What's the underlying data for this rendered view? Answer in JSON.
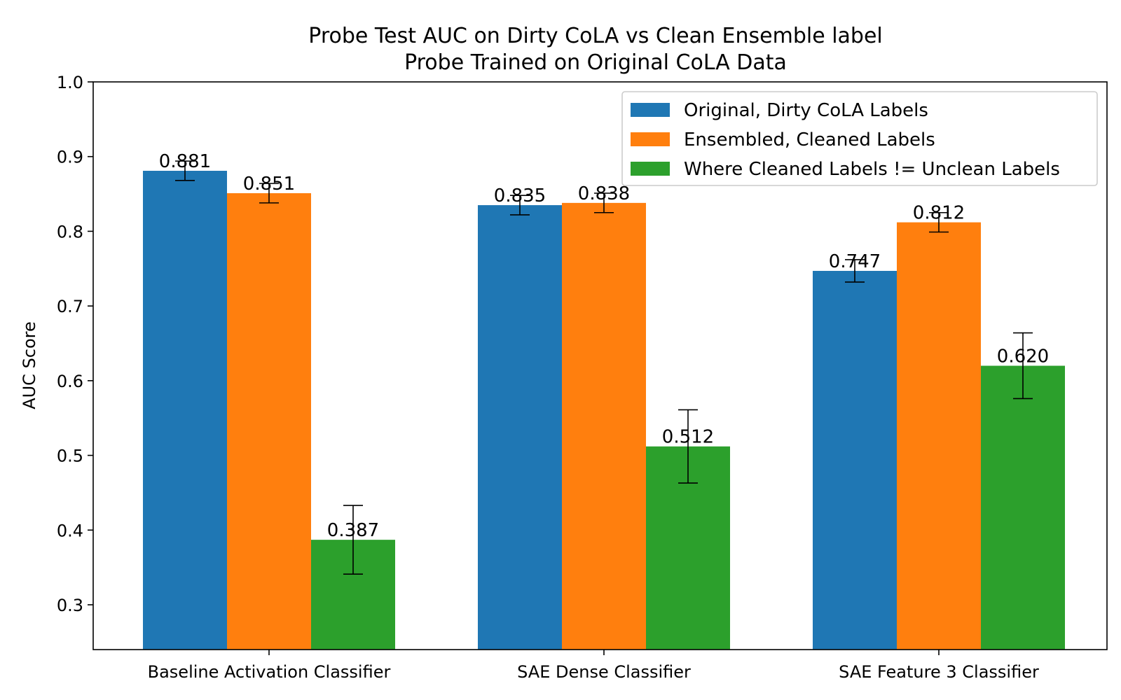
{
  "chart_data": {
    "type": "bar",
    "title": [
      "Probe Test AUC on Dirty CoLA vs Clean Ensemble label",
      "Probe Trained on Original CoLA Data"
    ],
    "xlabel": "",
    "ylabel": "AUC Score",
    "ylim": [
      0.24,
      1.0
    ],
    "yticks": [
      "0.3",
      "0.4",
      "0.5",
      "0.6",
      "0.7",
      "0.8",
      "0.9",
      "1.0"
    ],
    "categories": [
      "Baseline Activation Classifier",
      "SAE Dense Classifier",
      "SAE Feature 3 Classifier"
    ],
    "legend_position": "top-right",
    "grid": false,
    "series": [
      {
        "name": "Original, Dirty CoLA Labels",
        "color": "#1f77b4",
        "values": [
          0.881,
          0.835,
          0.747
        ],
        "labels": [
          "0.881",
          "0.835",
          "0.747"
        ],
        "error": [
          0.013,
          0.013,
          0.015
        ]
      },
      {
        "name": "Ensembled, Cleaned Labels",
        "color": "#ff7f0e",
        "values": [
          0.851,
          0.838,
          0.812
        ],
        "labels": [
          "0.851",
          "0.838",
          "0.812"
        ],
        "error": [
          0.013,
          0.013,
          0.013
        ]
      },
      {
        "name": "Where Cleaned Labels != Unclean Labels",
        "color": "#2ca02c",
        "values": [
          0.387,
          0.512,
          0.62
        ],
        "labels": [
          "0.387",
          "0.512",
          "0.620"
        ],
        "error": [
          0.046,
          0.049,
          0.044
        ]
      }
    ]
  }
}
